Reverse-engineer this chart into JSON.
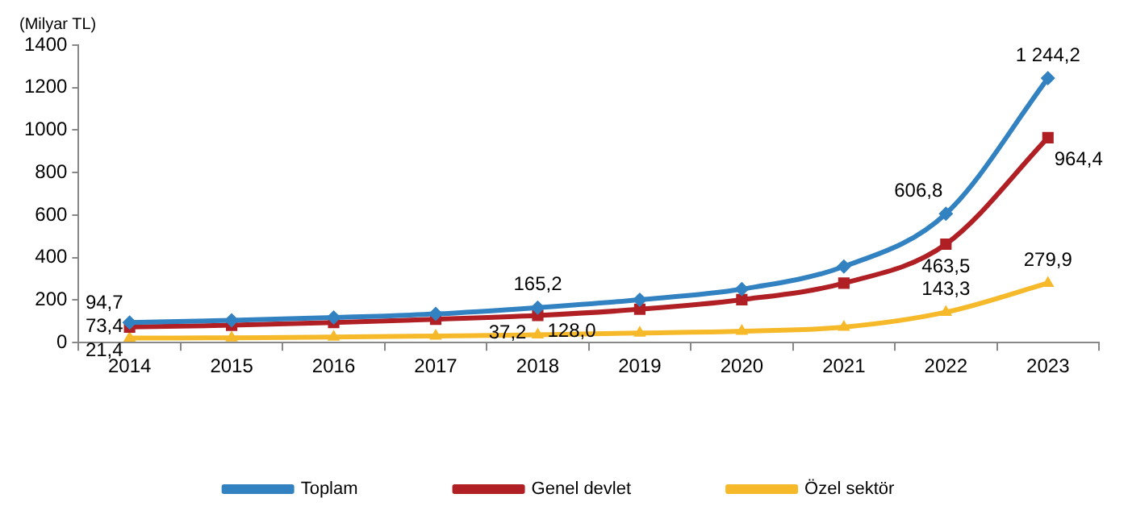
{
  "chart_data": {
    "type": "line",
    "ylabel": "(Milyar TL)",
    "categories": [
      "2014",
      "2015",
      "2016",
      "2017",
      "2018",
      "2019",
      "2020",
      "2021",
      "2022",
      "2023"
    ],
    "series": [
      {
        "name": "Toplam",
        "color": "#3282c2",
        "marker": "diamond",
        "values": [
          94.7,
          105,
          118,
          135,
          165.2,
          202,
          252,
          358,
          606.8,
          1244.2
        ],
        "value_labels": [
          "94,7",
          null,
          null,
          null,
          "165,2",
          null,
          null,
          null,
          "606,8",
          "1 244,2"
        ]
      },
      {
        "name": "Genel devlet",
        "color": "#b01f24",
        "marker": "square",
        "values": [
          73.4,
          82,
          95,
          110,
          128.0,
          157,
          202,
          280,
          463.5,
          964.4
        ],
        "value_labels": [
          "73,4",
          null,
          null,
          null,
          "128,0",
          null,
          null,
          null,
          "463,5",
          "964,4"
        ]
      },
      {
        "name": "Özel sektör",
        "color": "#f6b929",
        "marker": "triangle",
        "values": [
          21.4,
          23,
          26,
          31,
          37.2,
          45,
          54,
          73,
          143.3,
          279.9
        ],
        "value_labels": [
          "21,4",
          null,
          null,
          null,
          "37,2",
          null,
          null,
          null,
          "143,3",
          "279,9"
        ]
      }
    ],
    "ylim": [
      0,
      1400
    ],
    "yticks": [
      0,
      200,
      400,
      600,
      800,
      1000,
      1200,
      1400
    ],
    "grid": false,
    "legend": "bottom",
    "line_style": "solid"
  }
}
